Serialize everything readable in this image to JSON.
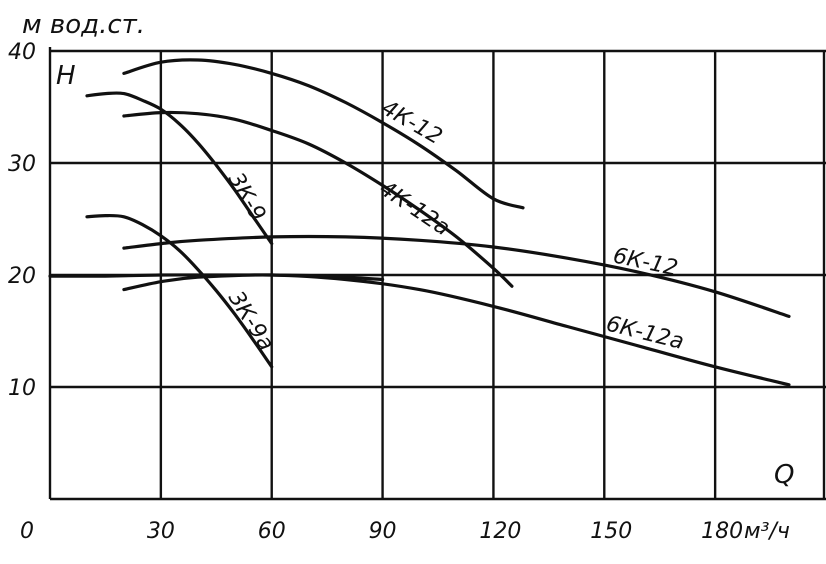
{
  "chart_data": {
    "type": "line",
    "y_unit_label": "м вод.ст.",
    "y_symbol": "H",
    "x_symbol": "Q",
    "x_unit_label": "м³/ч",
    "x_tick_labels": [
      "0",
      "30",
      "60",
      "90",
      "120",
      "150",
      "180"
    ],
    "y_tick_labels": [
      "10",
      "20",
      "30",
      "40"
    ],
    "xlim": [
      0,
      210
    ],
    "ylim": [
      0,
      40
    ],
    "grid": true,
    "series": [
      {
        "name": "4К-12",
        "x": [
          20,
          30,
          40,
          50,
          60,
          70,
          80,
          90,
          100,
          110,
          120,
          128
        ],
        "y": [
          38.0,
          39.0,
          39.2,
          38.8,
          38.0,
          36.9,
          35.4,
          33.6,
          31.6,
          29.3,
          26.8,
          26.0
        ]
      },
      {
        "name": "4К-12а",
        "x": [
          20,
          30,
          40,
          50,
          60,
          70,
          80,
          90,
          100,
          110,
          120,
          125
        ],
        "y": [
          34.2,
          34.5,
          34.4,
          33.9,
          32.9,
          31.7,
          30.0,
          28.0,
          25.8,
          23.4,
          20.6,
          19.0
        ]
      },
      {
        "name": "3К-9",
        "x": [
          10,
          15,
          20,
          25,
          30,
          35,
          40,
          45,
          50,
          55,
          60
        ],
        "y": [
          36.0,
          36.2,
          36.2,
          35.6,
          34.8,
          33.5,
          31.8,
          29.8,
          27.6,
          25.2,
          22.8
        ]
      },
      {
        "name": "3К-9а",
        "x": [
          10,
          15,
          20,
          25,
          30,
          35,
          40,
          45,
          50,
          55,
          60
        ],
        "y": [
          25.2,
          25.3,
          25.2,
          24.5,
          23.5,
          22.2,
          20.5,
          18.6,
          16.5,
          14.2,
          11.8
        ]
      },
      {
        "name": "6К-12",
        "x": [
          20,
          30,
          40,
          60,
          80,
          100,
          120,
          140,
          160,
          180,
          200
        ],
        "y": [
          22.4,
          22.8,
          23.1,
          23.4,
          23.4,
          23.1,
          22.5,
          21.5,
          20.2,
          18.5,
          16.3
        ]
      },
      {
        "name": "6К-12а",
        "x": [
          20,
          30,
          40,
          60,
          80,
          100,
          120,
          140,
          160,
          180,
          200
        ],
        "y": [
          18.7,
          19.4,
          19.8,
          20.0,
          19.6,
          18.7,
          17.2,
          15.4,
          13.6,
          11.8,
          10.2
        ]
      },
      {
        "name": "",
        "x": [
          0,
          15,
          30,
          45,
          60,
          75,
          90
        ],
        "y": [
          19.9,
          19.9,
          20.0,
          20.0,
          20.0,
          19.9,
          19.6
        ]
      }
    ]
  }
}
